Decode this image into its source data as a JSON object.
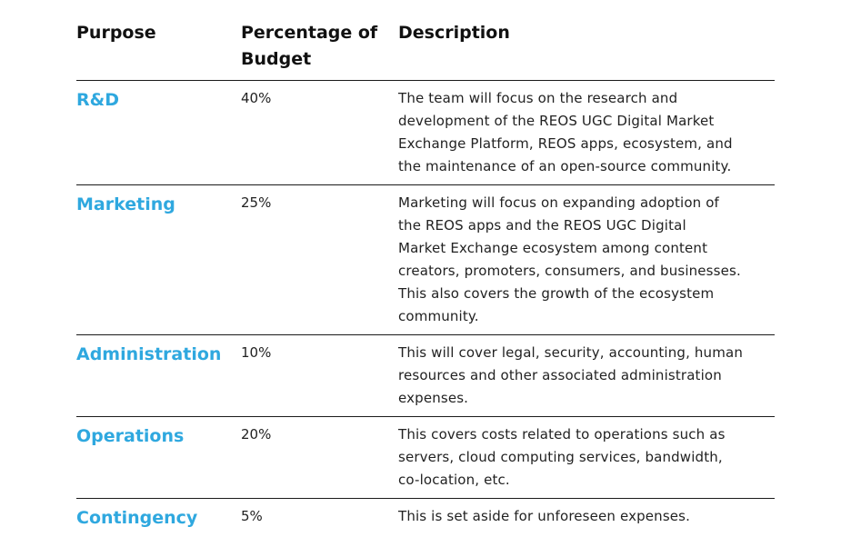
{
  "table": {
    "headers": {
      "purpose_line1": "Purpose",
      "percentage_line1": "Percentage of",
      "percentage_line2": "Budget",
      "description_line1": "Description"
    },
    "rows": [
      {
        "purpose": "R&D",
        "percentage": "40%",
        "description_lines": [
          "The team will focus on the research and",
          "development of the REOS UGC Digital Market",
          "Exchange Platform, REOS apps, ecosystem, and",
          "the maintenance of an open-source community."
        ]
      },
      {
        "purpose": "Marketing",
        "percentage": "25%",
        "description_lines": [
          "Marketing will focus on expanding adoption of",
          "the REOS apps and the REOS UGC Digital",
          "Market Exchange ecosystem among content",
          "creators, promoters, consumers, and businesses.",
          "This also covers the growth of the ecosystem",
          "community."
        ]
      },
      {
        "purpose": "Administration",
        "percentage": "10%",
        "description_lines": [
          "This will cover legal, security, accounting, human",
          "resources and other associated administration",
          "expenses."
        ]
      },
      {
        "purpose": "Operations",
        "percentage": "20%",
        "description_lines": [
          "This covers costs related to operations such as",
          "servers, cloud computing services, bandwidth,",
          "co-location, etc."
        ]
      },
      {
        "purpose": "Contingency",
        "percentage": "5%",
        "description_lines": [
          "This is set aside for unforeseen expenses."
        ]
      }
    ],
    "colors": {
      "purpose_accent": "#2fa8df",
      "text": "#222222",
      "rule": "#1a1a1a"
    }
  }
}
